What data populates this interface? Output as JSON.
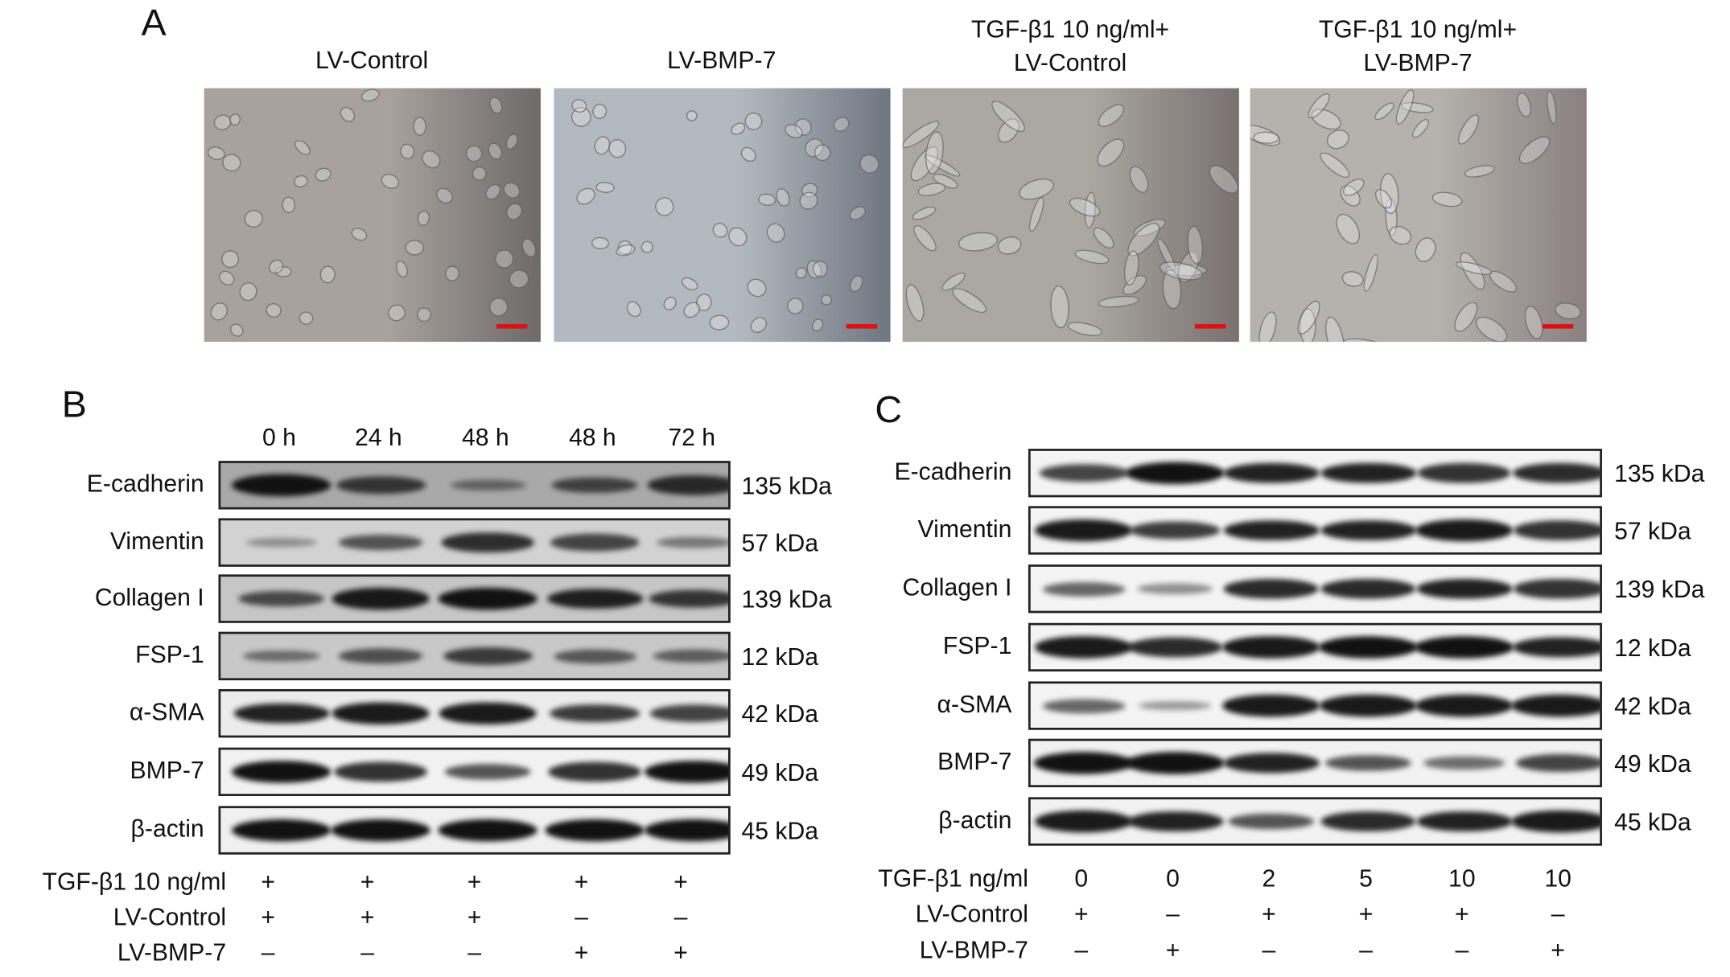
{
  "panel_a": {
    "label": "A",
    "images": [
      {
        "title": [
          "LV-Control"
        ],
        "tint": "#a8a19c",
        "edge": "#6e6a6a"
      },
      {
        "title": [
          "LV-BMP-7"
        ],
        "tint": "#b3b9c0",
        "edge": "#707680"
      },
      {
        "title": [
          "TGF-β1 10 ng/ml+",
          "LV-Control"
        ],
        "tint": "#aaa8a0",
        "edge": "#7a7070"
      },
      {
        "title": [
          "TGF-β1 10 ng/ml+",
          "LV-BMP-7"
        ],
        "tint": "#b5b2ad",
        "edge": "#8a8080"
      }
    ],
    "scale_bar_color": "#e01010"
  },
  "panel_b": {
    "label": "B",
    "lanes": [
      "0 h",
      "24 h",
      "48 h",
      "48 h",
      "72 h"
    ],
    "rows": [
      {
        "protein": "E-cadherin",
        "kda": "135 kDa",
        "bg": "#a9a9a9",
        "intensity": [
          1.0,
          0.7,
          0.3,
          0.6,
          0.8
        ]
      },
      {
        "protein": "Vimentin",
        "kda": "57 kDa",
        "bg": "#d2d2d2",
        "intensity": [
          0.15,
          0.55,
          0.8,
          0.65,
          0.3
        ]
      },
      {
        "protein": "Collagen I",
        "kda": "139 kDa",
        "bg": "#c6c6c6",
        "intensity": [
          0.6,
          0.95,
          1,
          0.9,
          0.75
        ]
      },
      {
        "protein": "FSP-1",
        "kda": "12 kDa",
        "bg": "#c8c8c8",
        "intensity": [
          0.35,
          0.55,
          0.7,
          0.5,
          0.45
        ]
      },
      {
        "protein": "α-SMA",
        "kda": "42 kDa",
        "bg": "#ececec",
        "intensity": [
          0.9,
          0.95,
          0.95,
          0.75,
          0.7
        ]
      },
      {
        "protein": "BMP-7",
        "kda": "49 kDa",
        "bg": "#f2f2f2",
        "intensity": [
          1,
          0.8,
          0.6,
          0.8,
          1
        ]
      },
      {
        "protein": "β-actin",
        "kda": "45 kDa",
        "bg": "#f0f0f0",
        "intensity": [
          1,
          1,
          1,
          1,
          1
        ]
      }
    ],
    "conditions": [
      {
        "label": "TGF-β1 10 ng/ml",
        "values": [
          "+",
          "+",
          "+",
          "+",
          "+"
        ]
      },
      {
        "label": "LV-Control",
        "values": [
          "+",
          "+",
          "+",
          "–",
          "–"
        ]
      },
      {
        "label": "LV-BMP-7",
        "values": [
          "–",
          "–",
          "–",
          "+",
          "+"
        ]
      }
    ]
  },
  "panel_c": {
    "label": "C",
    "rows": [
      {
        "protein": "E-cadherin",
        "kda": "135 kDa",
        "bg": "#f4f4f4",
        "intensity": [
          0.7,
          1,
          0.9,
          0.9,
          0.8,
          0.85
        ]
      },
      {
        "protein": "Vimentin",
        "kda": "57 kDa",
        "bg": "#f4f4f4",
        "intensity": [
          0.95,
          0.75,
          0.9,
          0.9,
          0.95,
          0.8
        ]
      },
      {
        "protein": "Collagen I",
        "kda": "139 kDa",
        "bg": "#f4f4f4",
        "intensity": [
          0.5,
          0.25,
          0.85,
          0.85,
          0.9,
          0.8
        ]
      },
      {
        "protein": "FSP-1",
        "kda": "12 kDa",
        "bg": "#f4f4f4",
        "intensity": [
          0.95,
          0.85,
          0.95,
          1,
          1,
          0.9
        ]
      },
      {
        "protein": "α-SMA",
        "kda": "42 kDa",
        "bg": "#f4f4f4",
        "intensity": [
          0.5,
          0.2,
          0.95,
          0.95,
          0.95,
          0.95
        ]
      },
      {
        "protein": "BMP-7",
        "kda": "49 kDa",
        "bg": "#f2f2f2",
        "intensity": [
          1,
          1,
          0.9,
          0.6,
          0.45,
          0.7
        ]
      },
      {
        "protein": "β-actin",
        "kda": "45 kDa",
        "bg": "#f2f2f2",
        "intensity": [
          0.95,
          0.9,
          0.6,
          0.85,
          0.9,
          0.95
        ]
      }
    ],
    "conditions": [
      {
        "label": "TGF-β1 ng/ml",
        "values": [
          "0",
          "0",
          "2",
          "5",
          "10",
          "10"
        ]
      },
      {
        "label": "LV-Control",
        "values": [
          "+",
          "–",
          "+",
          "+",
          "+",
          "–"
        ]
      },
      {
        "label": "LV-BMP-7",
        "values": [
          "–",
          "+",
          "–",
          "–",
          "–",
          "+"
        ]
      }
    ]
  }
}
